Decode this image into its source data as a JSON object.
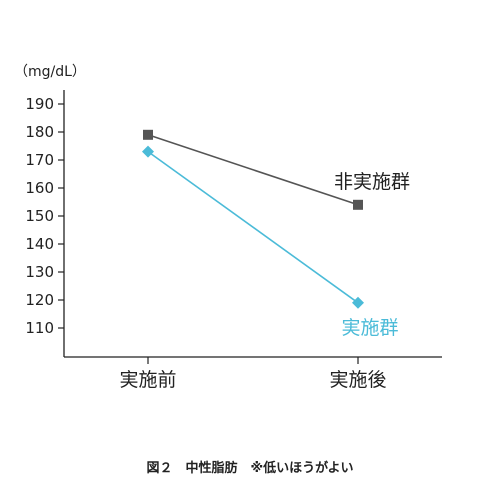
{
  "caption": "図２　中性脂肪　※低いほうがよい",
  "chart_data": {
    "type": "line",
    "ylabel": "（mg/dL）",
    "ylim": [
      100,
      200
    ],
    "yticks": [
      110,
      120,
      130,
      140,
      150,
      160,
      170,
      180,
      190
    ],
    "categories": [
      "実施前",
      "実施後"
    ],
    "series": [
      {
        "name": "非実施群",
        "values": [
          179,
          154
        ],
        "color": "#555555",
        "marker": "square"
      },
      {
        "name": "実施群",
        "values": [
          173,
          119
        ],
        "color": "#4bbbd8",
        "marker": "diamond"
      }
    ],
    "grid": false,
    "legend": "inline labels near line ends"
  }
}
